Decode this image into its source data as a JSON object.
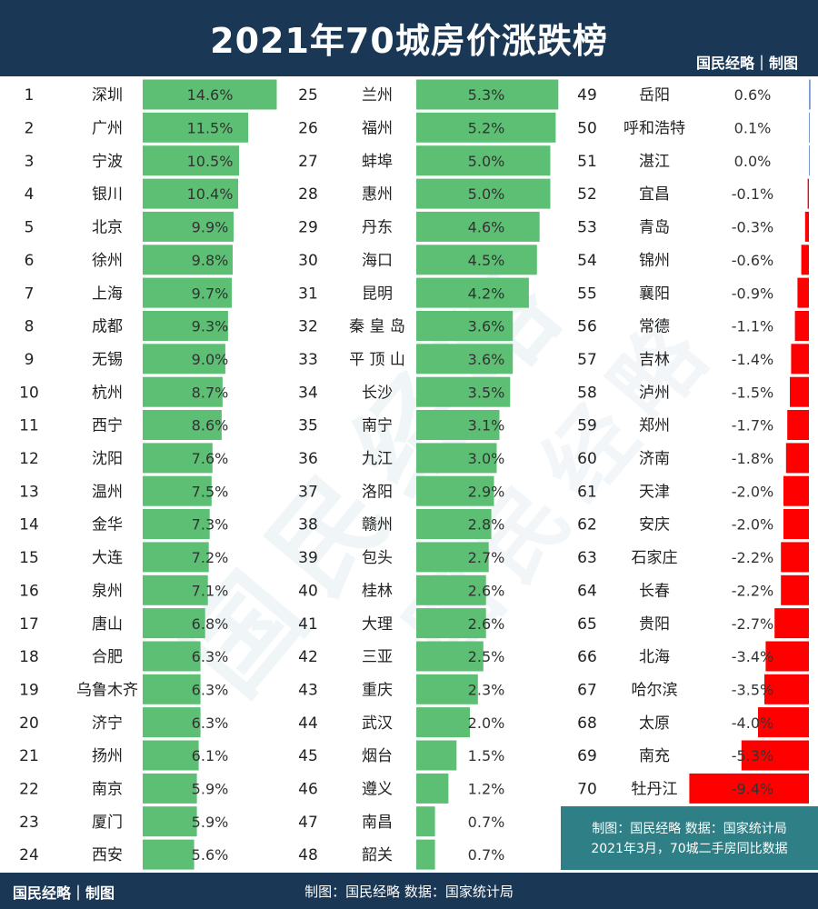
{
  "header": {
    "title": "2021年70城房价涨跌榜",
    "brand": "国民经略｜制图"
  },
  "footer": {
    "brand": "国民经略｜制图",
    "source": "制图：国民经略 数据：国家统计局"
  },
  "watermark": "国民经略",
  "note": {
    "line1": "制图：国民经略  数据：国家统计局",
    "line2": "2021年3月，70城二手房同比数据"
  },
  "colors": {
    "header": "#1a3855",
    "positive": "#5cbf74",
    "negative": "#ff0000",
    "zero": "#7a9ac9",
    "note": "#2e7f86"
  },
  "chart_data": {
    "type": "bar",
    "title": "2021年70城房价涨跌榜",
    "unit": "%",
    "ranks": [
      1,
      2,
      3,
      4,
      5,
      6,
      7,
      8,
      9,
      10,
      11,
      12,
      13,
      14,
      15,
      16,
      17,
      18,
      19,
      20,
      21,
      22,
      23,
      24,
      25,
      26,
      27,
      28,
      29,
      30,
      31,
      32,
      33,
      34,
      35,
      36,
      37,
      38,
      39,
      40,
      41,
      42,
      43,
      44,
      45,
      46,
      47,
      48,
      49,
      50,
      51,
      52,
      53,
      54,
      55,
      56,
      57,
      58,
      59,
      60,
      61,
      62,
      63,
      64,
      65,
      66,
      67,
      68,
      69,
      70
    ],
    "categories": [
      "深圳",
      "广州",
      "宁波",
      "银川",
      "北京",
      "徐州",
      "上海",
      "成都",
      "无锡",
      "杭州",
      "西宁",
      "沈阳",
      "温州",
      "金华",
      "大连",
      "泉州",
      "唐山",
      "合肥",
      "乌鲁木齐",
      "济宁",
      "扬州",
      "南京",
      "厦门",
      "西安",
      "兰州",
      "福州",
      "蚌埠",
      "惠州",
      "丹东",
      "海口",
      "昆明",
      "秦 皇 岛",
      "平 顶 山",
      "长沙",
      "南宁",
      "九江",
      "洛阳",
      "赣州",
      "包头",
      "桂林",
      "大理",
      "三亚",
      "重庆",
      "武汉",
      "烟台",
      "遵义",
      "南昌",
      "韶关",
      "岳阳",
      "呼和浩特",
      "湛江",
      "宜昌",
      "青岛",
      "锦州",
      "襄阳",
      "常德",
      "吉林",
      "泸州",
      "郑州",
      "济南",
      "天津",
      "安庆",
      "石家庄",
      "长春",
      "贵阳",
      "北海",
      "哈尔滨",
      "太原",
      "南充",
      "牡丹江"
    ],
    "values": [
      14.6,
      11.5,
      10.5,
      10.4,
      9.9,
      9.8,
      9.7,
      9.3,
      9.0,
      8.7,
      8.6,
      7.6,
      7.5,
      7.3,
      7.2,
      7.1,
      6.8,
      6.3,
      6.3,
      6.3,
      6.1,
      5.9,
      5.9,
      5.6,
      5.3,
      5.2,
      5.0,
      5.0,
      4.6,
      4.5,
      4.2,
      3.6,
      3.6,
      3.5,
      3.1,
      3.0,
      2.9,
      2.8,
      2.7,
      2.6,
      2.6,
      2.5,
      2.3,
      2.0,
      1.5,
      1.2,
      0.7,
      0.7,
      0.6,
      0.1,
      0.0,
      -0.1,
      -0.3,
      -0.6,
      -0.9,
      -1.1,
      -1.4,
      -1.5,
      -1.7,
      -1.8,
      -2.0,
      -2.0,
      -2.2,
      -2.2,
      -2.7,
      -3.4,
      -3.5,
      -4.0,
      -5.3,
      -9.4
    ],
    "labels": [
      "14.6%",
      "11.5%",
      "10.5%",
      "10.4%",
      "9.9%",
      "9.8%",
      "9.7%",
      "9.3%",
      "9.0%",
      "8.7%",
      "8.6%",
      "7.6%",
      "7.5%",
      "7.3%",
      "7.2%",
      "7.1%",
      "6.8%",
      "6.3%",
      "6.3%",
      "6.3%",
      "6.1%",
      "5.9%",
      "5.9%",
      "5.6%",
      "5.3%",
      "5.2%",
      "5.0%",
      "5.0%",
      "4.6%",
      "4.5%",
      "4.2%",
      "3.6%",
      "3.6%",
      "3.5%",
      "3.1%",
      "3.0%",
      "2.9%",
      "2.8%",
      "2.7%",
      "2.6%",
      "2.6%",
      "2.5%",
      "2.3%",
      "2.0%",
      "1.5%",
      "1.2%",
      "0.7%",
      "0.7%",
      "0.6%",
      "0.1%",
      "0.0%",
      "-0.1%",
      "-0.3%",
      "-0.6%",
      "-0.9%",
      "-1.1%",
      "-1.4%",
      "-1.5%",
      "-1.7%",
      "-1.8%",
      "-2.0%",
      "-2.0%",
      "-2.2%",
      "-2.2%",
      "-2.7%",
      "-3.4%",
      "-3.5%",
      "-4.0%",
      "-5.3%",
      "-9.4%"
    ]
  }
}
